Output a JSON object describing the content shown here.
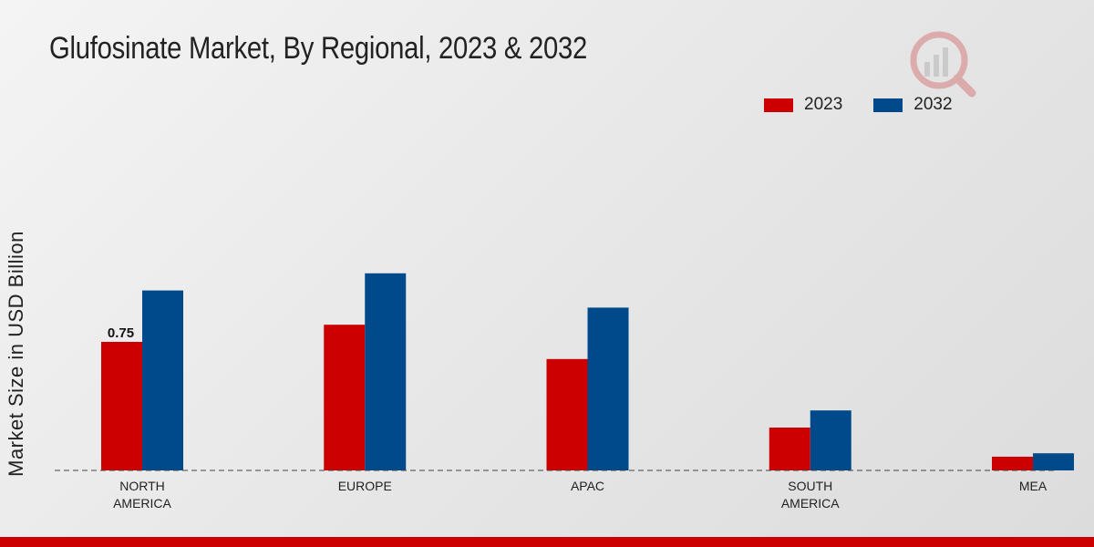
{
  "chart_data": {
    "type": "bar",
    "title": "Glufosinate Market, By Regional, 2023 & 2032",
    "ylabel": "Market Size in USD Billion",
    "xlabel": "",
    "categories": [
      "NORTH\nAMERICA",
      "EUROPE",
      "APAC",
      "SOUTH\nAMERICA",
      "MEA"
    ],
    "series": [
      {
        "name": "2023",
        "color": "#cc0000",
        "values": [
          0.75,
          0.85,
          0.65,
          0.25,
          0.08
        ]
      },
      {
        "name": "2032",
        "color": "#004a8c",
        "values": [
          1.05,
          1.15,
          0.95,
          0.35,
          0.1
        ]
      }
    ],
    "data_labels": [
      {
        "series": 0,
        "index": 0,
        "text": "0.75"
      }
    ],
    "ylim": [
      0,
      1.5
    ],
    "grid": false,
    "legend": "top-right"
  },
  "theme": {
    "footer_color": "#cc0000"
  }
}
